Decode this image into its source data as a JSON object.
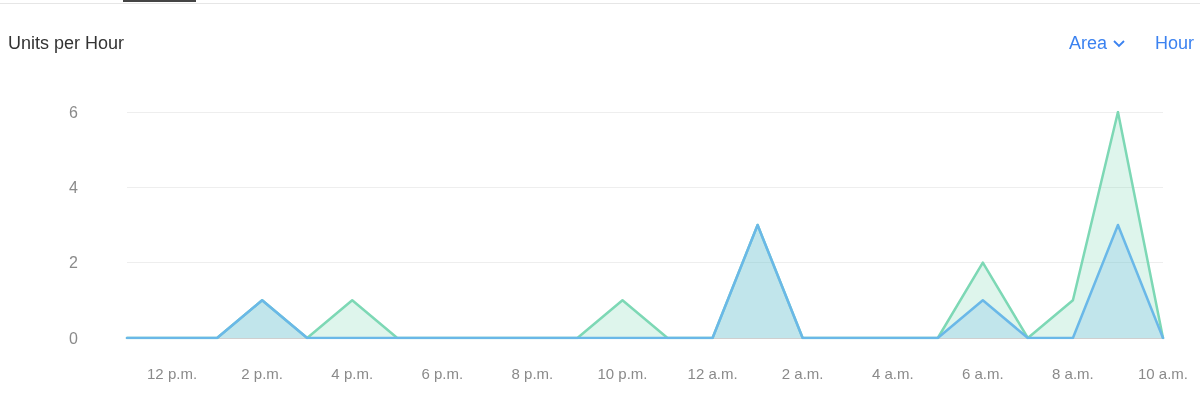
{
  "chart_data": {
    "type": "area",
    "title": "Units per Hour",
    "annotations": [
      "Area",
      "Hour"
    ],
    "categories": [
      null,
      "12 p.m.",
      null,
      "2 p.m.",
      null,
      "4 p.m.",
      null,
      "6 p.m.",
      null,
      "8 p.m.",
      null,
      "10 p.m.",
      null,
      "12 a.m.",
      null,
      "2 a.m.",
      null,
      "4 a.m.",
      null,
      "6 a.m.",
      null,
      "8 a.m.",
      null,
      "10 a.m."
    ],
    "series": [
      {
        "color": "#7dd8b5",
        "values": [
          0,
          0,
          0,
          1,
          0,
          1,
          0,
          0,
          0,
          0,
          0,
          1,
          0,
          0,
          3,
          0,
          0,
          0,
          0,
          2,
          0,
          1,
          6,
          0
        ]
      },
      {
        "color": "#6ab8e8",
        "values": [
          0,
          0,
          0,
          1,
          0,
          0,
          0,
          0,
          0,
          0,
          0,
          0,
          0,
          0,
          3,
          0,
          0,
          0,
          0,
          1,
          0,
          0,
          3,
          0
        ]
      }
    ],
    "ylim": [
      0,
      6
    ],
    "yticks": [
      0,
      2,
      4,
      6
    ],
    "grid": "y",
    "marker": "none",
    "line_style": "solid"
  }
}
